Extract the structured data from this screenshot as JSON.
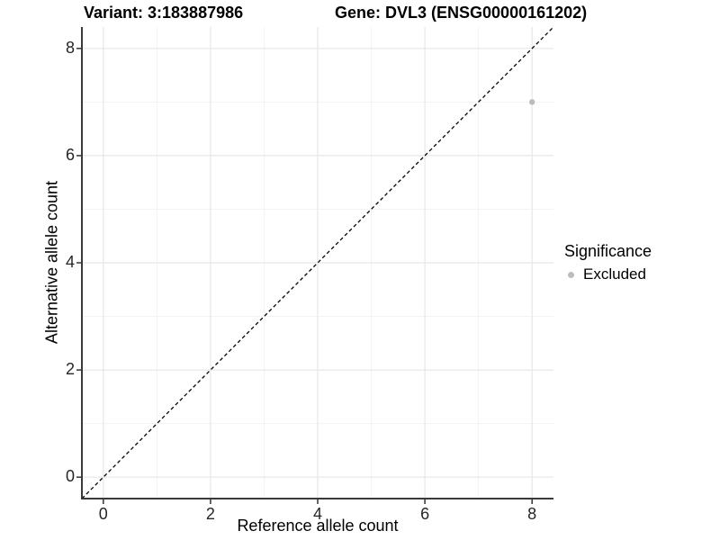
{
  "titles": {
    "variant": "Variant: 3:183887986",
    "gene": "Gene: DVL3 (ENSG00000161202)"
  },
  "axes": {
    "x_label": "Reference allele count",
    "y_label": "Alternative allele count"
  },
  "legend": {
    "title": "Significance",
    "items": [
      {
        "label": "Excluded",
        "color": "#bdbdbd"
      }
    ]
  },
  "style": {
    "major_grid_color": "#e7e7e7",
    "minor_grid_color": "#f3f3f3",
    "axis_line_color": "#3a3a3a",
    "tick_mark_color": "#333333",
    "reference_line_color": "#000000",
    "point_color": "#bdbdbd",
    "background": "#ffffff"
  },
  "chart_data": {
    "type": "scatter",
    "title": "Variant: 3:183887986    Gene: DVL3 (ENSG00000161202)",
    "xlabel": "Reference allele count",
    "ylabel": "Alternative allele count",
    "xlim": [
      -0.4,
      8.4
    ],
    "ylim": [
      -0.4,
      8.4
    ],
    "xticks": [
      0,
      2,
      4,
      6,
      8
    ],
    "yticks": [
      0,
      2,
      4,
      6,
      8
    ],
    "minor_ticks_x": [
      1,
      3,
      5,
      7
    ],
    "minor_ticks_y": [
      1,
      3,
      5,
      7
    ],
    "grid": true,
    "legend_title": "Significance",
    "legend_position": "right",
    "series": [
      {
        "name": "Excluded",
        "color": "#bdbdbd",
        "points": [
          {
            "x": 8,
            "y": 7
          }
        ]
      }
    ],
    "annotations": [
      {
        "type": "abline",
        "slope": 1,
        "intercept": 0,
        "style": "dashed",
        "color": "#000000",
        "label": "identity line y = x"
      }
    ]
  }
}
